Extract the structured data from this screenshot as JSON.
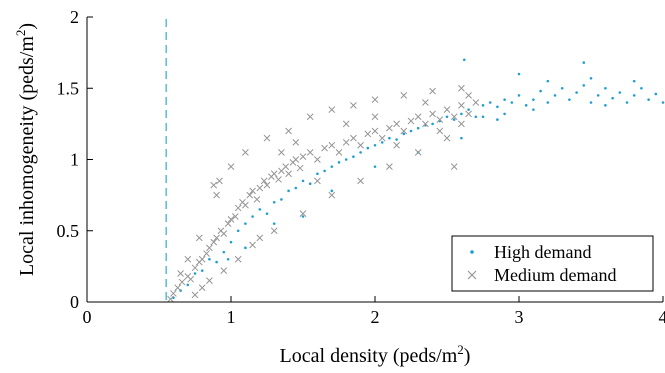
{
  "chart_data": {
    "type": "scatter",
    "xlabel": "Local density (peds/m",
    "xlabel_sup": "2",
    "xlabel_close": ")",
    "ylabel": "Local inhomogeneity (peds/m",
    "ylabel_sup": "2",
    "ylabel_close": ")",
    "xlim": [
      0,
      4
    ],
    "ylim": [
      0,
      2
    ],
    "xticks": [
      "0",
      "1",
      "2",
      "3",
      "4"
    ],
    "yticks": [
      "0",
      "0.5",
      "1",
      "1.5",
      "2"
    ],
    "grid": false,
    "legend_position": "bottom-right",
    "vline": {
      "x": 0.55,
      "color": "#5bbcd6",
      "style": "dashed"
    },
    "series": [
      {
        "name": "High demand",
        "marker": "dot",
        "color": "#1f9fd0",
        "points": [
          [
            0.6,
            0.03
          ],
          [
            0.65,
            0.08
          ],
          [
            0.7,
            0.12
          ],
          [
            0.75,
            0.2
          ],
          [
            0.8,
            0.22
          ],
          [
            0.85,
            0.3
          ],
          [
            0.9,
            0.28
          ],
          [
            0.95,
            0.35
          ],
          [
            1.0,
            0.42
          ],
          [
            1.05,
            0.5
          ],
          [
            1.1,
            0.55
          ],
          [
            1.15,
            0.6
          ],
          [
            1.2,
            0.65
          ],
          [
            1.25,
            0.62
          ],
          [
            1.3,
            0.7
          ],
          [
            1.35,
            0.72
          ],
          [
            1.4,
            0.78
          ],
          [
            1.45,
            0.8
          ],
          [
            1.5,
            0.85
          ],
          [
            1.55,
            0.83
          ],
          [
            1.6,
            0.9
          ],
          [
            1.65,
            0.92
          ],
          [
            1.7,
            0.95
          ],
          [
            1.75,
            0.98
          ],
          [
            1.8,
            1.0
          ],
          [
            1.85,
            1.02
          ],
          [
            1.9,
            1.05
          ],
          [
            1.95,
            1.08
          ],
          [
            2.0,
            1.1
          ],
          [
            2.05,
            1.12
          ],
          [
            2.1,
            1.15
          ],
          [
            2.15,
            1.14
          ],
          [
            2.2,
            1.18
          ],
          [
            2.25,
            1.2
          ],
          [
            2.3,
            1.22
          ],
          [
            2.35,
            1.24
          ],
          [
            2.4,
            1.25
          ],
          [
            2.45,
            1.27
          ],
          [
            2.5,
            1.3
          ],
          [
            2.55,
            1.28
          ],
          [
            2.6,
            1.32
          ],
          [
            2.65,
            1.35
          ],
          [
            2.7,
            1.3
          ],
          [
            2.75,
            1.38
          ],
          [
            2.8,
            1.4
          ],
          [
            2.85,
            1.37
          ],
          [
            2.9,
            1.42
          ],
          [
            2.95,
            1.4
          ],
          [
            3.0,
            1.45
          ],
          [
            3.05,
            1.38
          ],
          [
            3.1,
            1.42
          ],
          [
            3.15,
            1.48
          ],
          [
            3.2,
            1.4
          ],
          [
            3.25,
            1.45
          ],
          [
            3.3,
            1.5
          ],
          [
            3.35,
            1.42
          ],
          [
            3.4,
            1.47
          ],
          [
            3.45,
            1.52
          ],
          [
            3.5,
            1.4
          ],
          [
            3.55,
            1.45
          ],
          [
            3.6,
            1.5
          ],
          [
            3.65,
            1.43
          ],
          [
            3.7,
            1.47
          ],
          [
            3.75,
            1.4
          ],
          [
            3.8,
            1.45
          ],
          [
            3.85,
            1.5
          ],
          [
            3.9,
            1.42
          ],
          [
            3.95,
            1.46
          ],
          [
            4.0,
            1.4
          ],
          [
            2.62,
            1.7
          ],
          [
            3.45,
            1.68
          ],
          [
            3.0,
            1.6
          ],
          [
            2.9,
            1.32
          ],
          [
            3.1,
            1.35
          ],
          [
            3.6,
            1.38
          ],
          [
            1.7,
            0.78
          ],
          [
            1.3,
            0.55
          ],
          [
            1.1,
            0.38
          ],
          [
            0.98,
            0.3
          ],
          [
            1.5,
            0.6
          ],
          [
            2.0,
            0.95
          ],
          [
            2.3,
            1.05
          ],
          [
            2.6,
            1.15
          ],
          [
            2.75,
            1.3
          ],
          [
            2.85,
            1.28
          ],
          [
            3.2,
            1.55
          ],
          [
            3.5,
            1.57
          ],
          [
            3.8,
            1.55
          ]
        ]
      },
      {
        "name": "Medium demand",
        "marker": "x",
        "color": "#969696",
        "points": [
          [
            0.58,
            0.02
          ],
          [
            0.6,
            0.06
          ],
          [
            0.63,
            0.1
          ],
          [
            0.66,
            0.14
          ],
          [
            0.7,
            0.18
          ],
          [
            0.72,
            0.16
          ],
          [
            0.75,
            0.24
          ],
          [
            0.78,
            0.28
          ],
          [
            0.8,
            0.3
          ],
          [
            0.83,
            0.34
          ],
          [
            0.85,
            0.38
          ],
          [
            0.88,
            0.42
          ],
          [
            0.9,
            0.45
          ],
          [
            0.93,
            0.5
          ],
          [
            0.95,
            0.48
          ],
          [
            0.98,
            0.55
          ],
          [
            1.0,
            0.58
          ],
          [
            1.03,
            0.6
          ],
          [
            1.05,
            0.66
          ],
          [
            1.08,
            0.7
          ],
          [
            1.1,
            0.68
          ],
          [
            1.13,
            0.75
          ],
          [
            1.15,
            0.78
          ],
          [
            1.18,
            0.72
          ],
          [
            1.2,
            0.8
          ],
          [
            1.23,
            0.85
          ],
          [
            1.25,
            0.82
          ],
          [
            1.28,
            0.88
          ],
          [
            1.3,
            0.9
          ],
          [
            1.33,
            0.86
          ],
          [
            1.35,
            0.92
          ],
          [
            1.38,
            0.95
          ],
          [
            1.4,
            0.9
          ],
          [
            1.43,
            0.98
          ],
          [
            1.45,
            1.0
          ],
          [
            1.48,
            0.94
          ],
          [
            1.5,
            1.02
          ],
          [
            1.55,
            1.05
          ],
          [
            1.6,
            1.0
          ],
          [
            1.65,
            1.08
          ],
          [
            1.7,
            1.1
          ],
          [
            1.75,
            1.05
          ],
          [
            1.8,
            1.12
          ],
          [
            1.85,
            1.15
          ],
          [
            1.9,
            1.1
          ],
          [
            1.95,
            1.18
          ],
          [
            2.0,
            1.2
          ],
          [
            2.05,
            1.15
          ],
          [
            2.1,
            1.22
          ],
          [
            2.15,
            1.25
          ],
          [
            2.2,
            1.2
          ],
          [
            2.25,
            1.27
          ],
          [
            2.3,
            1.3
          ],
          [
            2.35,
            1.25
          ],
          [
            2.4,
            1.32
          ],
          [
            2.45,
            1.28
          ],
          [
            2.5,
            1.35
          ],
          [
            2.55,
            1.3
          ],
          [
            2.6,
            1.38
          ],
          [
            2.65,
            1.32
          ],
          [
            2.7,
            1.4
          ],
          [
            0.9,
            0.75
          ],
          [
            0.88,
            0.82
          ],
          [
            0.92,
            0.85
          ],
          [
            1.0,
            0.95
          ],
          [
            1.1,
            1.05
          ],
          [
            1.25,
            1.15
          ],
          [
            1.4,
            1.2
          ],
          [
            1.55,
            1.3
          ],
          [
            1.7,
            1.35
          ],
          [
            1.85,
            1.38
          ],
          [
            2.0,
            1.42
          ],
          [
            2.2,
            1.45
          ],
          [
            2.4,
            1.48
          ],
          [
            2.6,
            1.5
          ],
          [
            1.05,
            0.3
          ],
          [
            1.15,
            0.4
          ],
          [
            1.3,
            0.5
          ],
          [
            1.5,
            0.62
          ],
          [
            1.7,
            0.75
          ],
          [
            1.9,
            0.85
          ],
          [
            2.1,
            0.95
          ],
          [
            2.3,
            1.05
          ],
          [
            2.5,
            1.15
          ],
          [
            2.55,
            0.95
          ],
          [
            0.75,
            0.05
          ],
          [
            0.8,
            0.1
          ],
          [
            0.85,
            0.15
          ],
          [
            0.95,
            0.22
          ],
          [
            1.2,
            0.45
          ],
          [
            1.6,
            0.85
          ],
          [
            2.15,
            1.1
          ],
          [
            2.45,
            1.2
          ],
          [
            2.6,
            1.25
          ],
          [
            0.65,
            0.2
          ],
          [
            0.7,
            0.3
          ],
          [
            0.78,
            0.45
          ],
          [
            1.35,
            1.05
          ],
          [
            1.45,
            1.12
          ],
          [
            1.8,
            1.25
          ],
          [
            2.0,
            1.3
          ],
          [
            2.35,
            1.4
          ],
          [
            2.65,
            1.45
          ]
        ]
      }
    ]
  }
}
